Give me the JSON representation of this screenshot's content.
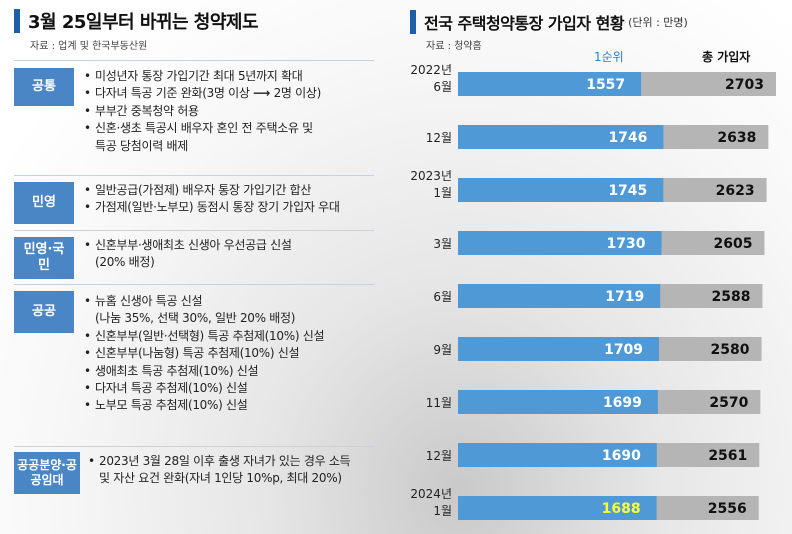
{
  "left": {
    "title": "3월 25일부터 바뀌는 청약제도",
    "source": "자료 : 업계 및 한국부동산원",
    "sections": [
      {
        "category": "공통",
        "items": [
          "미성년자 통장 가입기간 최대 5년까지 확대",
          "다자녀 특공 기준 완화(3명 이상",
          "2명 이상)",
          "부부간 중복청약 허용",
          "신혼·생초 특공시 배우자 혼인 전 주택소유 및",
          "특공 당첨이력 배제"
        ]
      },
      {
        "category": "민영",
        "items": [
          "일반공급(가점제) 배우자 통장 가입기간 합산",
          "가점제(일반·노부모) 동점시 통장 장기 가입자 우대"
        ]
      },
      {
        "category": "민영·국민",
        "items": [
          "신혼부부·생애최초 신생아 우선공급 신설",
          "(20% 배정)"
        ]
      },
      {
        "category": "공공",
        "items": [
          "뉴홈 신생아 특공 신설",
          "(나눔 35%, 선택 30%, 일반 20% 배정)",
          "신혼부부(일반·선택형) 특공 추첨제(10%) 신설",
          "신혼부부(나눔형) 특공 추첨제(10%) 신설",
          "생애최초 특공 추첨제(10%) 신설",
          "다자녀 특공 추첨제(10%) 신설",
          "노부모 특공 추첨제(10%) 신설"
        ]
      },
      {
        "category": "공공분양·공공임대",
        "items": [
          "2023년 3월 28일 이후 출생 자녀가 있는 경우 소득",
          "및 자산 요건 완화(자녀 1인당 10%p, 최대 20%)"
        ]
      }
    ],
    "bullet": "•",
    "arrow": "⟶"
  },
  "chart_data": {
    "type": "bar",
    "orientation": "horizontal",
    "title": "전국 주택청약통장 가입자 현황",
    "unit": "(단위 : 만명)",
    "source": "자료 : 청약홈",
    "categories": [
      "2022년 6월",
      "12월",
      "2023년 1월",
      "3월",
      "6월",
      "9월",
      "11월",
      "12월",
      "2024년 1월"
    ],
    "category_lines": [
      [
        "2022년",
        "6월"
      ],
      [
        "12월"
      ],
      [
        "2023년",
        "1월"
      ],
      [
        "3월"
      ],
      [
        "6월"
      ],
      [
        "9월"
      ],
      [
        "11월"
      ],
      [
        "12월"
      ],
      [
        "2024년",
        "1월"
      ]
    ],
    "series": [
      {
        "name": "1순위",
        "values": [
          1557,
          1746,
          1745,
          1730,
          1719,
          1709,
          1699,
          1690,
          1688
        ],
        "color": "#4f9ad6"
      },
      {
        "name": "총 가입자",
        "values": [
          2703,
          2638,
          2623,
          2605,
          2588,
          2580,
          2570,
          2561,
          2556
        ],
        "color": "#b5b5b5"
      }
    ],
    "highlight_last_label_color": "#ffff33",
    "label_color": "#ffffff",
    "total_label_color": "#111111",
    "xlim": [
      0,
      2703
    ]
  },
  "colors": {
    "accent": "#1f5fa8",
    "category_box": "#4a86c5"
  }
}
